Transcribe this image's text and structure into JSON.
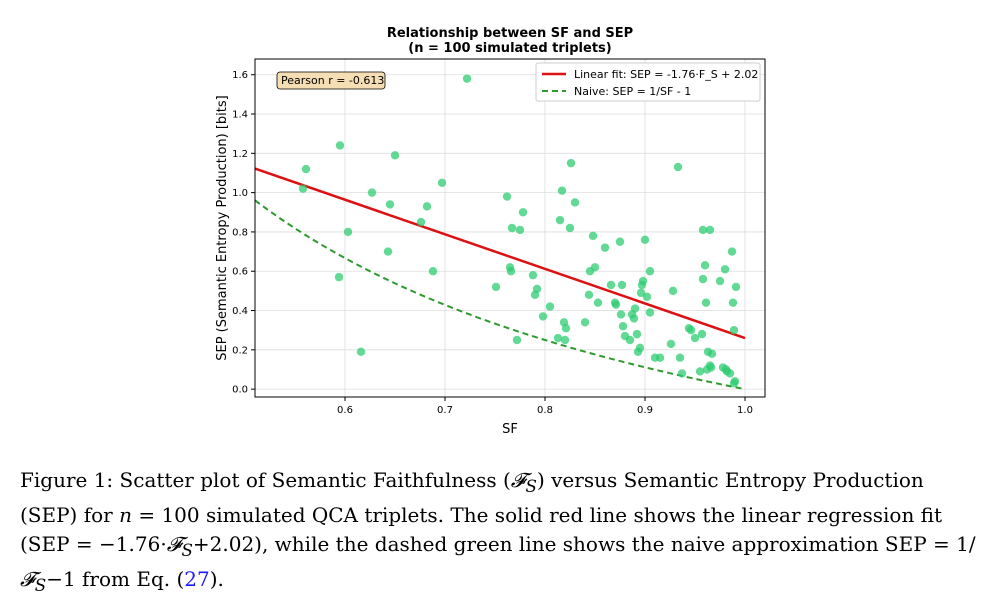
{
  "chart_data": {
    "type": "scatter",
    "title": "Relationship between SF and SEP",
    "subtitle": "(n = 100 simulated triplets)",
    "xlabel": "SF",
    "ylabel": "SEP (Semantic Entropy Production) [bits]",
    "xlim": [
      0.51,
      1.02
    ],
    "ylim": [
      -0.04,
      1.68
    ],
    "xticks": [
      0.6,
      0.7,
      0.8,
      0.9,
      1.0
    ],
    "xtick_labels": [
      "0.6",
      "0.7",
      "0.8",
      "0.9",
      "1.0"
    ],
    "yticks": [
      0.0,
      0.2,
      0.4,
      0.6,
      0.8,
      1.0,
      1.2,
      1.4,
      1.6
    ],
    "ytick_labels": [
      "0.0",
      "0.2",
      "0.4",
      "0.6",
      "0.8",
      "1.0",
      "1.2",
      "1.4",
      "1.6"
    ],
    "grid": true,
    "point_color": "#2ecc71",
    "fit_color": "#dd1111",
    "naive_color": "#2e9a2e",
    "annotation": "Pearson r = -0.613",
    "legend_position": "top-right",
    "legend": [
      "Linear fit: SEP = -1.76·F_S + 2.02",
      "Naive: SEP = 1/SF - 1"
    ],
    "linear_fit": {
      "slope": -1.76,
      "intercept": 2.02,
      "x_range": [
        0.51,
        1.0
      ]
    },
    "naive_curve": {
      "formula": "1/SF - 1",
      "x_range": [
        0.51,
        1.0
      ]
    },
    "points": [
      [
        0.558,
        1.02
      ],
      [
        0.561,
        1.12
      ],
      [
        0.595,
        1.24
      ],
      [
        0.594,
        0.57
      ],
      [
        0.603,
        0.8
      ],
      [
        0.616,
        0.19
      ],
      [
        0.627,
        1.0
      ],
      [
        0.643,
        0.7
      ],
      [
        0.645,
        0.94
      ],
      [
        0.65,
        1.19
      ],
      [
        0.676,
        0.85
      ],
      [
        0.682,
        0.93
      ],
      [
        0.688,
        0.6
      ],
      [
        0.697,
        1.05
      ],
      [
        0.722,
        1.58
      ],
      [
        0.751,
        0.52
      ],
      [
        0.762,
        0.98
      ],
      [
        0.765,
        0.62
      ],
      [
        0.766,
        0.6
      ],
      [
        0.767,
        0.82
      ],
      [
        0.772,
        0.25
      ],
      [
        0.775,
        0.81
      ],
      [
        0.778,
        0.9
      ],
      [
        0.788,
        0.58
      ],
      [
        0.79,
        0.48
      ],
      [
        0.792,
        0.51
      ],
      [
        0.798,
        0.37
      ],
      [
        0.805,
        0.42
      ],
      [
        0.813,
        0.26
      ],
      [
        0.815,
        0.86
      ],
      [
        0.817,
        1.01
      ],
      [
        0.819,
        0.34
      ],
      [
        0.82,
        0.25
      ],
      [
        0.821,
        0.31
      ],
      [
        0.825,
        0.82
      ],
      [
        0.826,
        1.15
      ],
      [
        0.83,
        0.95
      ],
      [
        0.84,
        0.34
      ],
      [
        0.844,
        0.48
      ],
      [
        0.845,
        0.6
      ],
      [
        0.848,
        0.78
      ],
      [
        0.85,
        0.62
      ],
      [
        0.853,
        0.44
      ],
      [
        0.86,
        0.72
      ],
      [
        0.866,
        0.53
      ],
      [
        0.87,
        0.44
      ],
      [
        0.871,
        0.43
      ],
      [
        0.875,
        0.75
      ],
      [
        0.876,
        0.38
      ],
      [
        0.877,
        0.53
      ],
      [
        0.878,
        0.32
      ],
      [
        0.88,
        0.27
      ],
      [
        0.885,
        0.25
      ],
      [
        0.887,
        0.38
      ],
      [
        0.889,
        0.36
      ],
      [
        0.89,
        0.41
      ],
      [
        0.892,
        0.28
      ],
      [
        0.893,
        0.19
      ],
      [
        0.895,
        0.21
      ],
      [
        0.896,
        0.49
      ],
      [
        0.897,
        0.53
      ],
      [
        0.898,
        0.55
      ],
      [
        0.9,
        0.76
      ],
      [
        0.902,
        0.47
      ],
      [
        0.905,
        0.39
      ],
      [
        0.905,
        0.6
      ],
      [
        0.91,
        0.16
      ],
      [
        0.915,
        0.16
      ],
      [
        0.926,
        0.23
      ],
      [
        0.928,
        0.5
      ],
      [
        0.933,
        1.13
      ],
      [
        0.935,
        0.16
      ],
      [
        0.937,
        0.08
      ],
      [
        0.944,
        0.31
      ],
      [
        0.946,
        0.3
      ],
      [
        0.95,
        0.26
      ],
      [
        0.955,
        0.09
      ],
      [
        0.957,
        0.28
      ],
      [
        0.958,
        0.81
      ],
      [
        0.958,
        0.56
      ],
      [
        0.96,
        0.63
      ],
      [
        0.961,
        0.44
      ],
      [
        0.962,
        0.1
      ],
      [
        0.963,
        0.19
      ],
      [
        0.965,
        0.81
      ],
      [
        0.965,
        0.12
      ],
      [
        0.966,
        0.11
      ],
      [
        0.967,
        0.18
      ],
      [
        0.975,
        0.55
      ],
      [
        0.978,
        0.11
      ],
      [
        0.98,
        0.61
      ],
      [
        0.981,
        0.1
      ],
      [
        0.982,
        0.09
      ],
      [
        0.985,
        0.08
      ],
      [
        0.987,
        0.7
      ],
      [
        0.988,
        0.44
      ],
      [
        0.989,
        0.3
      ],
      [
        0.989,
        0.03
      ],
      [
        0.99,
        0.04
      ],
      [
        0.991,
        0.52
      ]
    ]
  },
  "caption": {
    "label": "Figure 1:",
    "p1": " Scatter plot of Semantic Faithfulness (",
    "sym1": "𝓕",
    "sub1": "S",
    "p2": ") versus Semantic Entropy Production (SEP) for ",
    "n_var": "n",
    "p3": " = 100 simulated QCA triplets. The solid red line shows the linear regression fit (SEP = −1.76·",
    "sym2": "𝓕",
    "sub2": "S",
    "p4": "+2.02), while the dashed green line shows the naive approximation SEP = 1/",
    "sym3": "𝓕",
    "sub3": "S",
    "p5": "−1 from Eq. (",
    "ref": "27",
    "p6": ")."
  }
}
